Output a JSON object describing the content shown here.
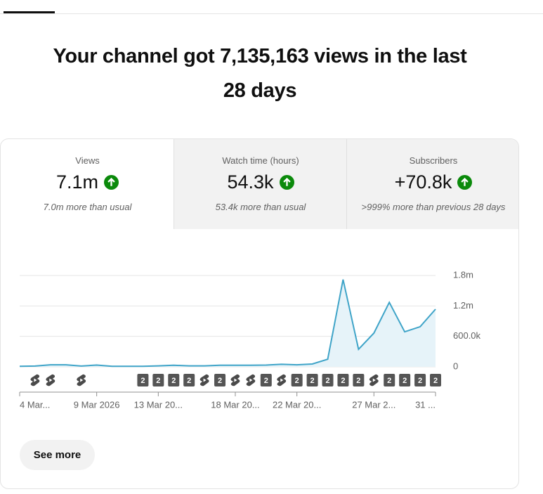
{
  "header": {
    "title": "Your channel got 7,135,163 views in the last 28 days"
  },
  "metrics": [
    {
      "label": "Views",
      "value": "7.1m",
      "note": "7.0m more than usual"
    },
    {
      "label": "Watch time (hours)",
      "value": "54.3k",
      "note": "53.4k more than usual"
    },
    {
      "label": "Subscribers",
      "value": "+70.8k",
      "note": ">999% more than previous 28 days"
    }
  ],
  "chart_data": {
    "type": "line",
    "x": [
      "4 Mar...",
      null,
      null,
      null,
      null,
      "9 Mar 2026",
      null,
      null,
      null,
      "13 Mar 20...",
      null,
      null,
      null,
      null,
      "18 Mar 20...",
      null,
      null,
      null,
      "22 Mar 20...",
      null,
      null,
      null,
      null,
      "27 Mar 2...",
      null,
      null,
      null,
      "31 ..."
    ],
    "series": [
      {
        "color": "#3fa4c8",
        "values": [
          10000,
          15000,
          40000,
          40000,
          15000,
          35000,
          10000,
          10000,
          10000,
          20000,
          30000,
          20000,
          20000,
          30000,
          30000,
          30000,
          35000,
          50000,
          40000,
          55000,
          150000,
          1720000,
          345000,
          665000,
          1270000,
          690000,
          790000,
          1135000
        ]
      }
    ],
    "area_color": "#e6f3f9",
    "ylim": [
      0,
      1800000
    ],
    "yticks": [
      0,
      {
        "value": 600000,
        "label": "600.0k"
      },
      {
        "value": 1200000,
        "label": "1.2m"
      },
      {
        "value": 1800000,
        "label": "1.8m"
      }
    ],
    "grid": true,
    "markers": [
      null,
      "shorts",
      "shorts",
      null,
      "shorts",
      null,
      null,
      null,
      2,
      2,
      2,
      2,
      "shorts",
      2,
      "shorts",
      "shorts",
      2,
      "shorts",
      2,
      2,
      2,
      2,
      2,
      "shorts",
      2,
      2,
      2,
      2
    ]
  },
  "see_more": "See more"
}
